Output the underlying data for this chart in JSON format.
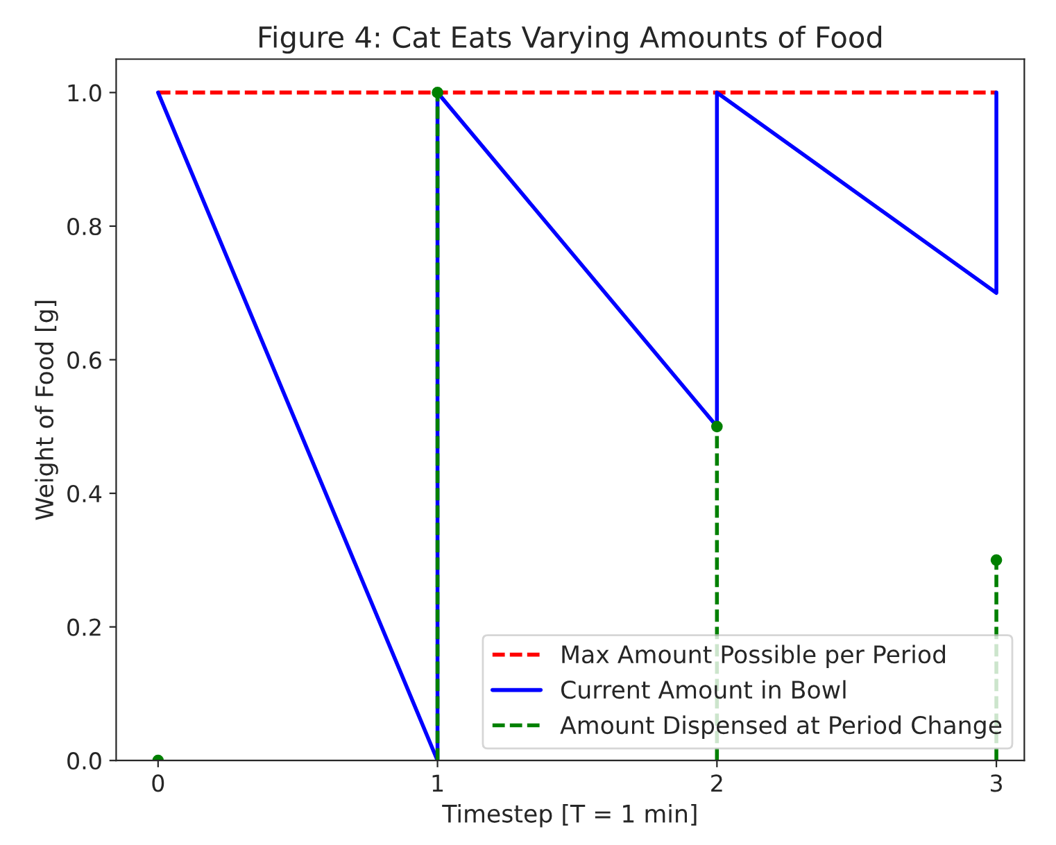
{
  "chart_data": {
    "type": "line",
    "title": "Figure 4: Cat Eats Varying Amounts of Food",
    "xlabel": "Timestep [T = 1 min]",
    "ylabel": "Weight of Food [g]",
    "xlim": [
      -0.15,
      3.1
    ],
    "ylim": [
      0,
      1.05
    ],
    "xticks": [
      0,
      1,
      2,
      3
    ],
    "yticks": [
      {
        "value": 0,
        "label": "0.0"
      },
      {
        "value": 0.2,
        "label": "0.2"
      },
      {
        "value": 0.4,
        "label": "0.4"
      },
      {
        "value": 0.6,
        "label": "0.6"
      },
      {
        "value": 0.8,
        "label": "0.8"
      },
      {
        "value": 1,
        "label": "1.0"
      }
    ],
    "legend": "bottom right",
    "series": [
      {
        "name": "Max Amount Possible per Period",
        "color": "#ff0000",
        "line_style": "dashed",
        "x": [
          0,
          3
        ],
        "values": [
          1,
          1
        ]
      },
      {
        "name": "Current Amount in Bowl",
        "color": "#0000ff",
        "line_style": "solid",
        "x": [
          0,
          1,
          1,
          2,
          2,
          3,
          3
        ],
        "values": [
          1,
          0,
          1,
          0.5,
          1,
          0.7,
          1
        ]
      },
      {
        "name": "Amount Dispensed at Period Change",
        "type": "lollipop",
        "color": "#008000",
        "line_style": "dashed",
        "marker": "circle",
        "x": [
          0,
          1,
          2,
          3
        ],
        "values": [
          0,
          1,
          0.5,
          0.3
        ]
      }
    ]
  }
}
